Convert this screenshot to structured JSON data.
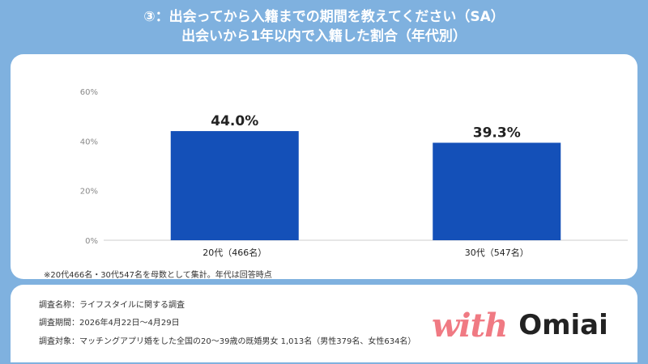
{
  "header": {
    "title_line1": "③：出会ってから入籍までの期間を教えてください（SA）",
    "title_line2": "出会いから1年以内で入籍した割合（年代別）"
  },
  "chart_data": {
    "type": "bar",
    "categories": [
      "20代（466名）",
      "30代（547名）"
    ],
    "values": [
      44.0,
      39.3
    ],
    "data_labels": [
      "44.0%",
      "39.3%"
    ],
    "yticks": [
      "0%",
      "20%",
      "40%",
      "60%"
    ],
    "ylim": [
      0,
      60
    ],
    "grid": false,
    "bar_color": "#1450b8"
  },
  "note": "※20代466名・30代547名を母数として集計。年代は回答時点",
  "info": {
    "line1": "調査名称：ライフスタイルに関する調査",
    "line2": "調査期間：2026年4月22日〜4月29日",
    "line3": "調査対象：マッチングアプリ婚をした全国の20〜39歳の既婚男女 1,013名（男性379名、女性634名）"
  },
  "logo": {
    "with": "with",
    "omiai": "Omiai"
  },
  "colors": {
    "background": "#7fb1df",
    "panel": "#ffffff",
    "bar": "#1450b8",
    "logo_with": "#f07a83"
  }
}
